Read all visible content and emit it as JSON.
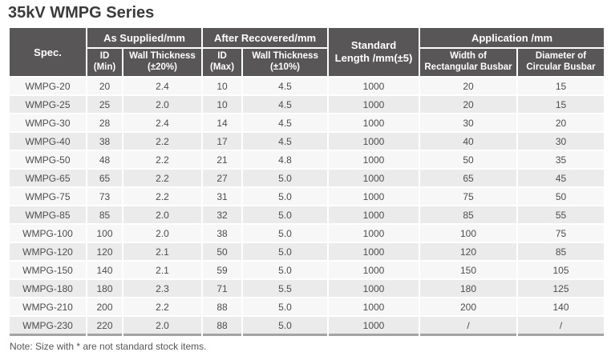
{
  "title": "35kV WMPG Series",
  "note": "Note: Size with * are not standard stock items.",
  "colors": {
    "header_bg": "#595657",
    "header_text": "#ffffff",
    "row_light": "#f7f7f7",
    "row_dark": "#ebebeb",
    "cell_text": "#4d4d4d",
    "title_text": "#3b3b3b",
    "table_bottom_border": "#a3a3a3"
  },
  "table": {
    "header": {
      "spec": "Spec.",
      "as_supplied": "As Supplied/mm",
      "after_recovered": "After Recovered/mm",
      "standard_length": [
        "Standard",
        "Length /mm(±5)"
      ],
      "application": "Application /mm",
      "sub": {
        "id_min": [
          "ID",
          "(Min)"
        ],
        "wall_20": [
          "Wall Thickness",
          "(±20%)"
        ],
        "id_max": [
          "ID",
          "(Max)"
        ],
        "wall_10": [
          "Wall Thickness",
          "(±10%)"
        ],
        "width_rect": [
          "Width of",
          "Rectangular Busbar"
        ],
        "diam_circ": [
          "Diameter of",
          "Circular Busbar"
        ]
      }
    },
    "rows": [
      [
        "WMPG-20",
        "20",
        "2.4",
        "10",
        "4.5",
        "1000",
        "20",
        "15"
      ],
      [
        "WMPG-25",
        "25",
        "2.0",
        "10",
        "4.5",
        "1000",
        "20",
        "15"
      ],
      [
        "WMPG-30",
        "28",
        "2.4",
        "14",
        "4.5",
        "1000",
        "30",
        "20"
      ],
      [
        "WMPG-40",
        "38",
        "2.2",
        "17",
        "4.5",
        "1000",
        "40",
        "30"
      ],
      [
        "WMPG-50",
        "48",
        "2.2",
        "21",
        "4.8",
        "1000",
        "50",
        "35"
      ],
      [
        "WMPG-65",
        "65",
        "2.2",
        "27",
        "5.0",
        "1000",
        "65",
        "45"
      ],
      [
        "WMPG-75",
        "73",
        "2.2",
        "31",
        "5.0",
        "1000",
        "75",
        "50"
      ],
      [
        "WMPG-85",
        "85",
        "2.0",
        "32",
        "5.0",
        "1000",
        "85",
        "55"
      ],
      [
        "WMPG-100",
        "100",
        "2.0",
        "38",
        "5.0",
        "1000",
        "100",
        "75"
      ],
      [
        "WMPG-120",
        "120",
        "2.1",
        "50",
        "5.0",
        "1000",
        "120",
        "85"
      ],
      [
        "WMPG-150",
        "140",
        "2.1",
        "59",
        "5.0",
        "1000",
        "150",
        "105"
      ],
      [
        "WMPG-180",
        "180",
        "2.3",
        "71",
        "5.5",
        "1000",
        "180",
        "125"
      ],
      [
        "WMPG-210",
        "200",
        "2.2",
        "88",
        "5.0",
        "1000",
        "200",
        "140"
      ],
      [
        "WMPG-230",
        "220",
        "2.0",
        "88",
        "5.0",
        "1000",
        "/",
        "/"
      ]
    ]
  }
}
